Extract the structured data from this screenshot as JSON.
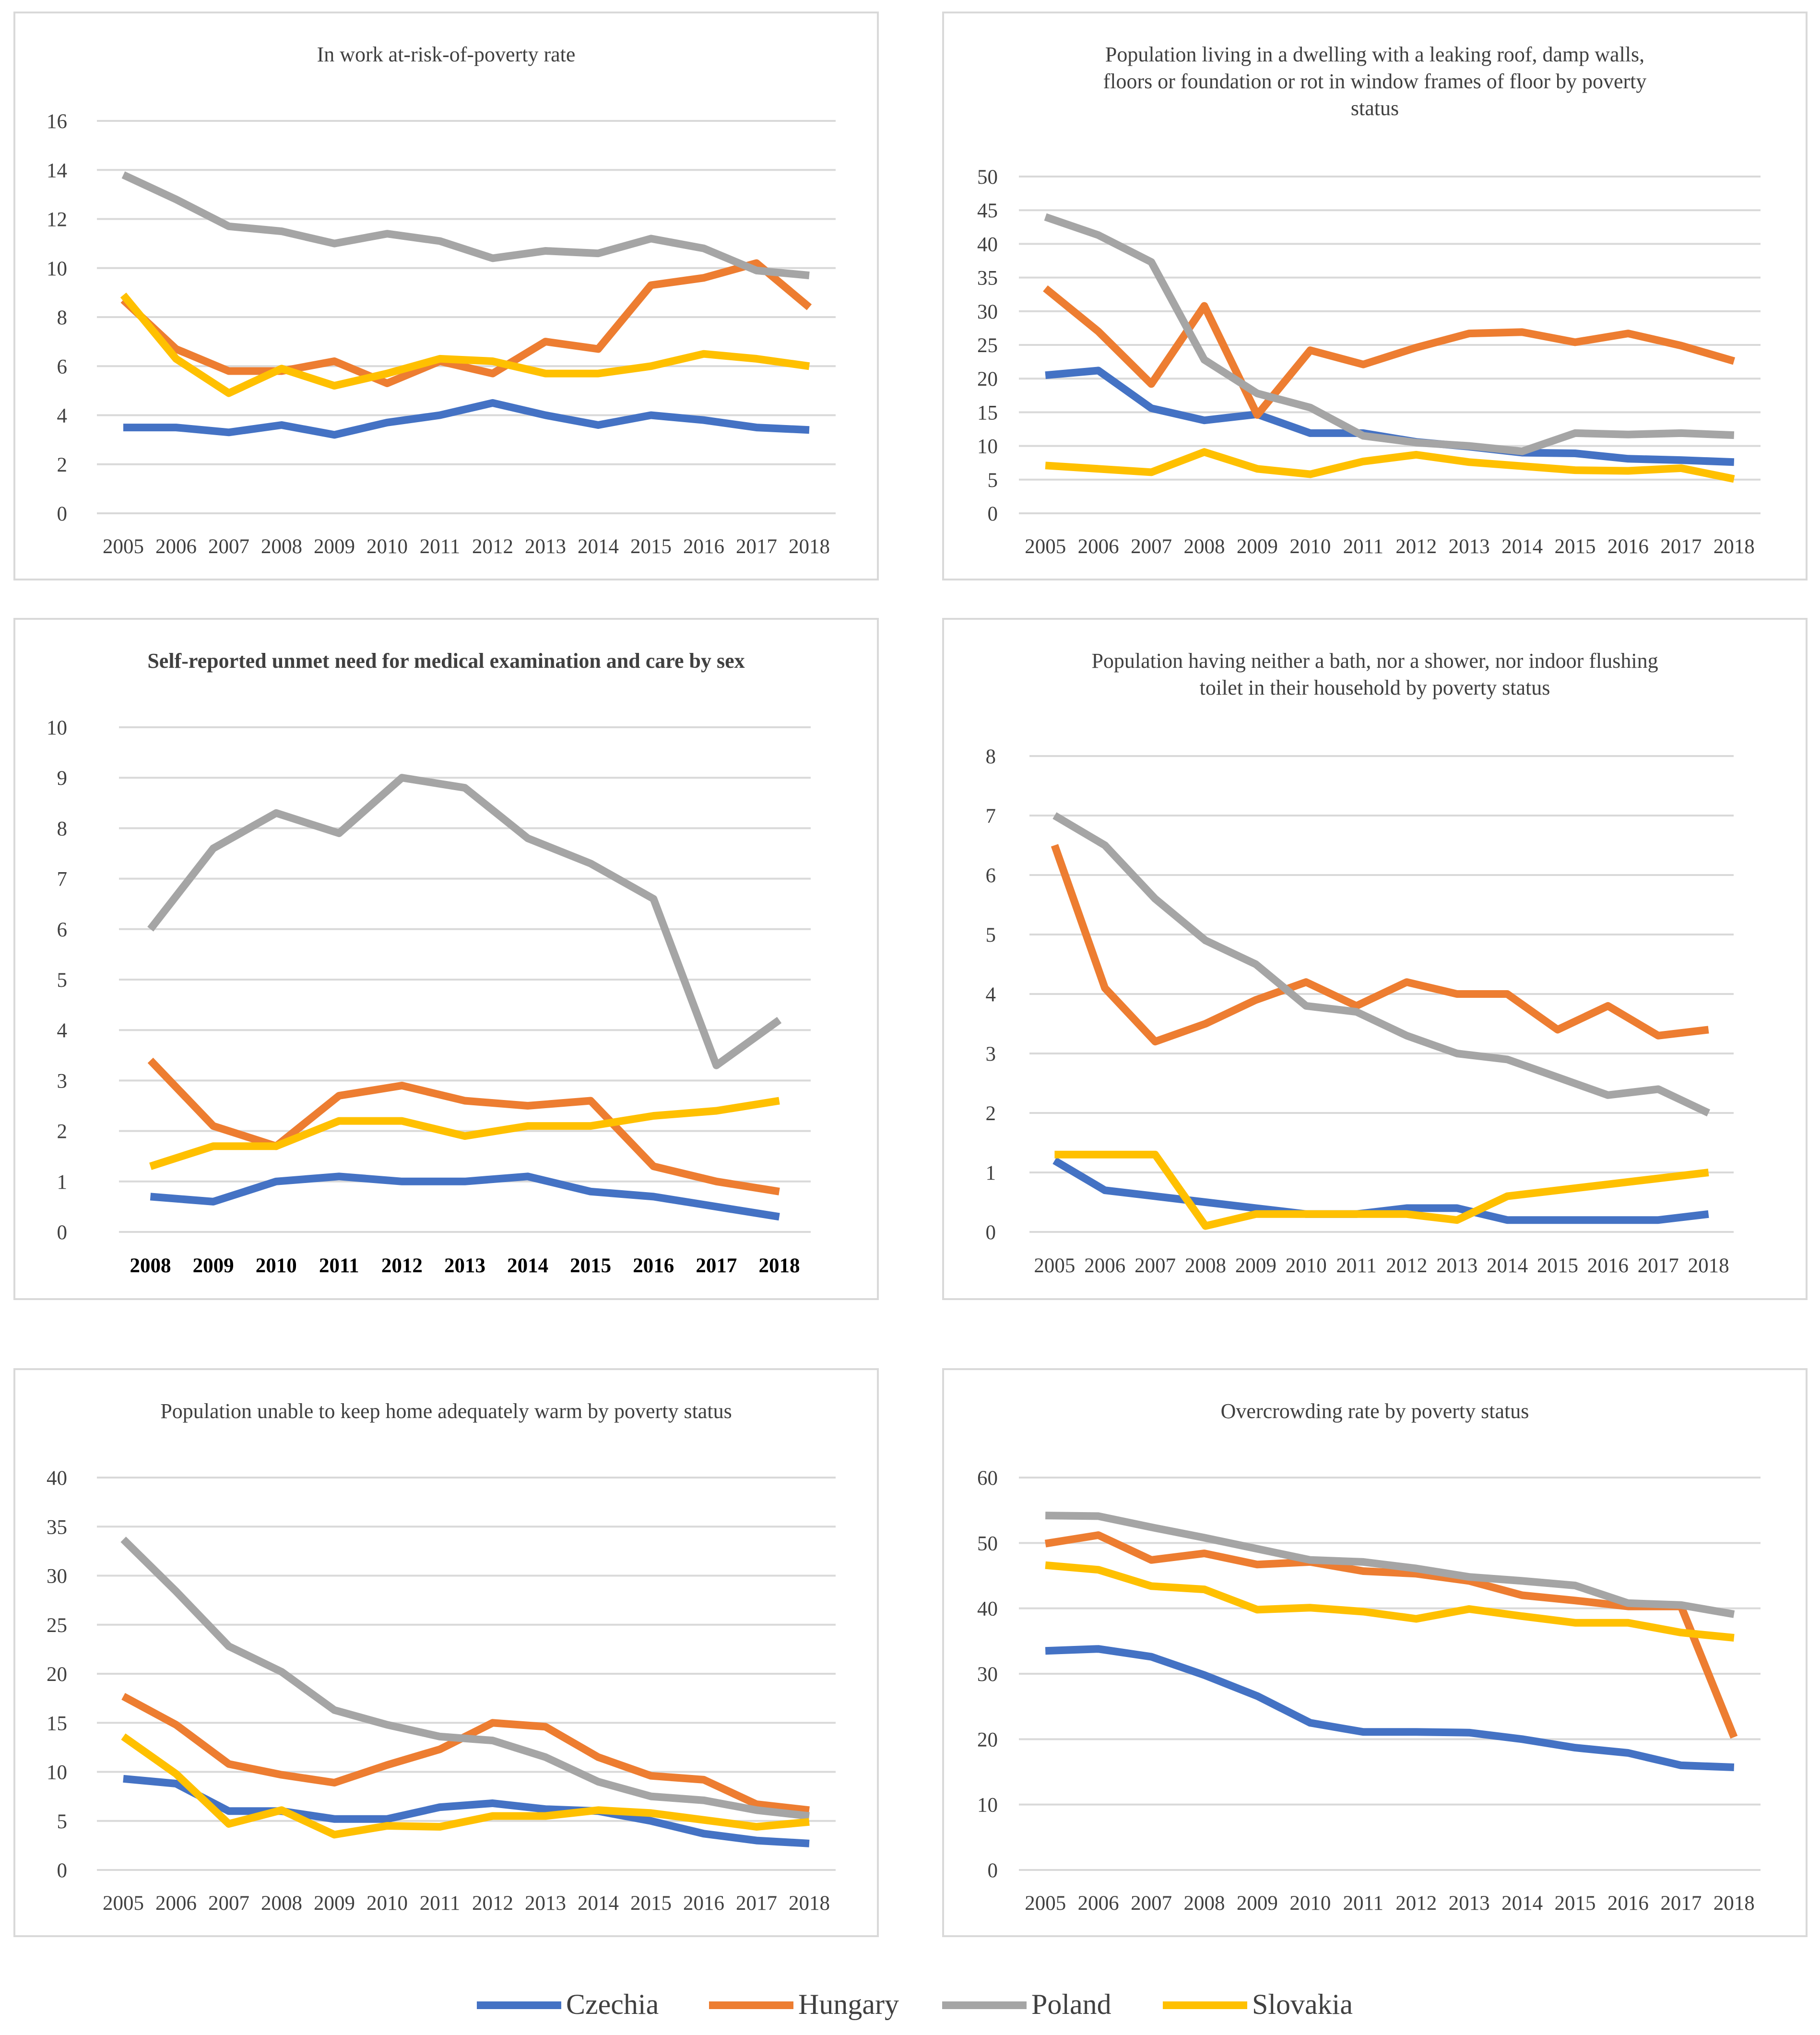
{
  "legend": [
    {
      "name": "Czechia",
      "color": "#4472c4"
    },
    {
      "name": "Hungary",
      "color": "#ed7d31"
    },
    {
      "name": "Poland",
      "color": "#a5a5a5"
    },
    {
      "name": "Slovakia",
      "color": "#ffc000"
    }
  ],
  "chart_data": [
    {
      "type": "line",
      "title": "In work at-risk-of-poverty rate",
      "title_lines": [
        "In work at-risk-of-poverty rate"
      ],
      "categories": [
        "2005",
        "2006",
        "2007",
        "2008",
        "2009",
        "2010",
        "2011",
        "2012",
        "2013",
        "2014",
        "2015",
        "2016",
        "2017",
        "2018"
      ],
      "ylim": [
        0,
        16
      ],
      "yticks": [
        0,
        2,
        4,
        6,
        8,
        10,
        12,
        14,
        16
      ],
      "grid": true,
      "bold_xticks": false,
      "series": [
        {
          "name": "Czechia",
          "values": [
            3.5,
            3.5,
            3.3,
            3.6,
            3.2,
            3.7,
            4.0,
            4.5,
            4.0,
            3.6,
            4.0,
            3.8,
            3.5,
            3.4
          ]
        },
        {
          "name": "Hungary",
          "values": [
            8.7,
            6.7,
            5.8,
            5.8,
            6.2,
            5.3,
            6.2,
            5.7,
            7.0,
            6.7,
            9.3,
            9.6,
            10.2,
            8.4
          ]
        },
        {
          "name": "Poland",
          "values": [
            13.8,
            12.8,
            11.7,
            11.5,
            11.0,
            11.4,
            11.1,
            10.4,
            10.7,
            10.6,
            11.2,
            10.8,
            9.9,
            9.7
          ]
        },
        {
          "name": "Slovakia",
          "values": [
            8.9,
            6.3,
            4.9,
            5.9,
            5.2,
            5.7,
            6.3,
            6.2,
            5.7,
            5.7,
            6.0,
            6.5,
            6.3,
            6.0
          ]
        }
      ]
    },
    {
      "type": "line",
      "title": "Population living in a dwelling with a leaking roof, damp walls, floors or foundation or rot in window frames of floor by poverty status",
      "title_lines": [
        "Population living in a dwelling with a leaking roof, damp walls,",
        "floors or foundation or rot in window frames of floor by poverty",
        "status"
      ],
      "categories": [
        "2005",
        "2006",
        "2007",
        "2008",
        "2009",
        "2010",
        "2011",
        "2012",
        "2013",
        "2014",
        "2015",
        "2016",
        "2017",
        "2018"
      ],
      "ylim": [
        0,
        50
      ],
      "yticks": [
        0,
        5,
        10,
        15,
        20,
        25,
        30,
        35,
        40,
        45,
        50
      ],
      "grid": true,
      "bold_xticks": false,
      "series": [
        {
          "name": "Czechia",
          "values": [
            20.5,
            21.2,
            15.6,
            13.8,
            14.7,
            11.9,
            11.9,
            10.6,
            9.9,
            9.0,
            8.9,
            8.1,
            7.9,
            7.6
          ]
        },
        {
          "name": "Hungary",
          "values": [
            33.4,
            27.0,
            19.2,
            30.8,
            14.6,
            24.2,
            22.1,
            24.6,
            26.7,
            26.9,
            25.4,
            26.7,
            24.9,
            22.6
          ]
        },
        {
          "name": "Poland",
          "values": [
            44.0,
            41.3,
            37.3,
            22.8,
            17.8,
            15.7,
            11.5,
            10.5,
            10.0,
            9.2,
            11.9,
            11.7,
            11.9,
            11.6
          ]
        },
        {
          "name": "Slovakia",
          "values": [
            7.1,
            6.6,
            6.1,
            9.1,
            6.6,
            5.8,
            7.7,
            8.7,
            7.6,
            7.0,
            6.4,
            6.3,
            6.7,
            5.1
          ]
        }
      ]
    },
    {
      "type": "line",
      "title": "Self-reported unmet need for medical examination and care by sex",
      "title_lines": [
        "Self-reported unmet need for medical examination and care by sex"
      ],
      "categories": [
        "2008",
        "2009",
        "2010",
        "2011",
        "2012",
        "2013",
        "2014",
        "2015",
        "2016",
        "2017",
        "2018"
      ],
      "ylim": [
        0,
        10
      ],
      "yticks": [
        0,
        1,
        2,
        3,
        4,
        5,
        6,
        7,
        8,
        9,
        10
      ],
      "grid": true,
      "bold_xticks": true,
      "series": [
        {
          "name": "Czechia",
          "values": [
            0.7,
            0.6,
            1.0,
            1.1,
            1.0,
            1.0,
            1.1,
            0.8,
            0.7,
            0.5,
            0.3
          ]
        },
        {
          "name": "Hungary",
          "values": [
            3.4,
            2.1,
            1.7,
            2.7,
            2.9,
            2.6,
            2.5,
            2.6,
            1.3,
            1.0,
            0.8
          ]
        },
        {
          "name": "Poland",
          "values": [
            6.0,
            7.6,
            8.3,
            7.9,
            9.0,
            8.8,
            7.8,
            7.3,
            6.6,
            3.3,
            4.2
          ]
        },
        {
          "name": "Slovakia",
          "values": [
            1.3,
            1.7,
            1.7,
            2.2,
            2.2,
            1.9,
            2.1,
            2.1,
            2.3,
            2.4,
            2.6
          ]
        }
      ]
    },
    {
      "type": "line",
      "title": "Population having neither a bath, nor a shower, nor indoor flushing toilet in their household by poverty status",
      "title_lines": [
        "Population having neither a bath, nor a shower, nor indoor flushing",
        "toilet in their household by poverty status"
      ],
      "categories": [
        "2005",
        "2006",
        "2007",
        "2008",
        "2009",
        "2010",
        "2011",
        "2012",
        "2013",
        "2014",
        "2015",
        "2016",
        "2017",
        "2018"
      ],
      "ylim": [
        0,
        8
      ],
      "yticks": [
        0,
        1,
        2,
        3,
        4,
        5,
        6,
        7,
        8
      ],
      "grid": true,
      "bold_xticks": false,
      "series": [
        {
          "name": "Czechia",
          "values": [
            1.2,
            0.7,
            0.6,
            0.5,
            0.4,
            0.3,
            0.3,
            0.4,
            0.4,
            0.2,
            0.2,
            0.2,
            0.2,
            0.3
          ]
        },
        {
          "name": "Hungary",
          "values": [
            6.5,
            4.1,
            3.2,
            3.5,
            3.9,
            4.2,
            3.8,
            4.2,
            4.0,
            4.0,
            3.4,
            3.8,
            3.3,
            3.4
          ]
        },
        {
          "name": "Poland",
          "values": [
            7.0,
            6.5,
            5.6,
            4.9,
            4.5,
            3.8,
            3.7,
            3.3,
            3.0,
            2.9,
            2.6,
            2.3,
            2.4,
            2.0
          ]
        },
        {
          "name": "Slovakia",
          "values": [
            1.3,
            1.3,
            1.3,
            0.1,
            0.3,
            0.3,
            0.3,
            0.3,
            0.2,
            0.6,
            0.7,
            0.8,
            0.9,
            1.0
          ]
        }
      ]
    },
    {
      "type": "line",
      "title": "Population unable to keep home adequately warm by poverty status",
      "title_lines": [
        "Population unable to keep home adequately warm by poverty status"
      ],
      "categories": [
        "2005",
        "2006",
        "2007",
        "2008",
        "2009",
        "2010",
        "2011",
        "2012",
        "2013",
        "2014",
        "2015",
        "2016",
        "2017",
        "2018"
      ],
      "ylim": [
        0,
        40
      ],
      "yticks": [
        0,
        5,
        10,
        15,
        20,
        25,
        30,
        35,
        40
      ],
      "grid": true,
      "bold_xticks": false,
      "series": [
        {
          "name": "Czechia",
          "values": [
            9.3,
            8.8,
            6.0,
            6.0,
            5.2,
            5.2,
            6.4,
            6.8,
            6.2,
            6.0,
            5.0,
            3.7,
            3.0,
            2.7
          ]
        },
        {
          "name": "Hungary",
          "values": [
            17.7,
            14.8,
            10.8,
            9.7,
            8.9,
            10.7,
            12.3,
            15.0,
            14.6,
            11.5,
            9.6,
            9.2,
            6.7,
            6.1
          ]
        },
        {
          "name": "Poland",
          "values": [
            33.7,
            28.4,
            22.8,
            20.2,
            16.3,
            14.8,
            13.6,
            13.2,
            11.5,
            9.0,
            7.5,
            7.1,
            6.1,
            5.5
          ]
        },
        {
          "name": "Slovakia",
          "values": [
            13.6,
            9.8,
            4.7,
            6.1,
            3.6,
            4.5,
            4.4,
            5.5,
            5.5,
            6.1,
            5.8,
            5.1,
            4.4,
            4.9
          ]
        }
      ]
    },
    {
      "type": "line",
      "title": "Overcrowding rate by poverty status",
      "title_lines": [
        "Overcrowding rate by poverty status"
      ],
      "categories": [
        "2005",
        "2006",
        "2007",
        "2008",
        "2009",
        "2010",
        "2011",
        "2012",
        "2013",
        "2014",
        "2015",
        "2016",
        "2017",
        "2018"
      ],
      "ylim": [
        0,
        60
      ],
      "yticks": [
        0,
        10,
        20,
        30,
        40,
        50,
        60
      ],
      "grid": true,
      "bold_xticks": false,
      "series": [
        {
          "name": "Czechia",
          "values": [
            33.5,
            33.8,
            32.6,
            29.8,
            26.6,
            22.5,
            21.1,
            21.1,
            21.0,
            20.0,
            18.7,
            17.9,
            16.0,
            15.7
          ]
        },
        {
          "name": "Hungary",
          "values": [
            49.9,
            51.2,
            47.4,
            48.4,
            46.7,
            47.1,
            45.7,
            45.3,
            44.2,
            42.0,
            41.2,
            40.3,
            40.3,
            20.3
          ]
        },
        {
          "name": "Poland",
          "values": [
            54.2,
            54.1,
            52.4,
            50.8,
            49.1,
            47.4,
            47.1,
            46.1,
            44.8,
            44.2,
            43.5,
            40.8,
            40.5,
            39.1
          ]
        },
        {
          "name": "Slovakia",
          "values": [
            46.6,
            45.9,
            43.4,
            42.9,
            39.8,
            40.1,
            39.5,
            38.4,
            39.9,
            38.8,
            37.8,
            37.8,
            36.3,
            35.5
          ]
        }
      ]
    }
  ]
}
